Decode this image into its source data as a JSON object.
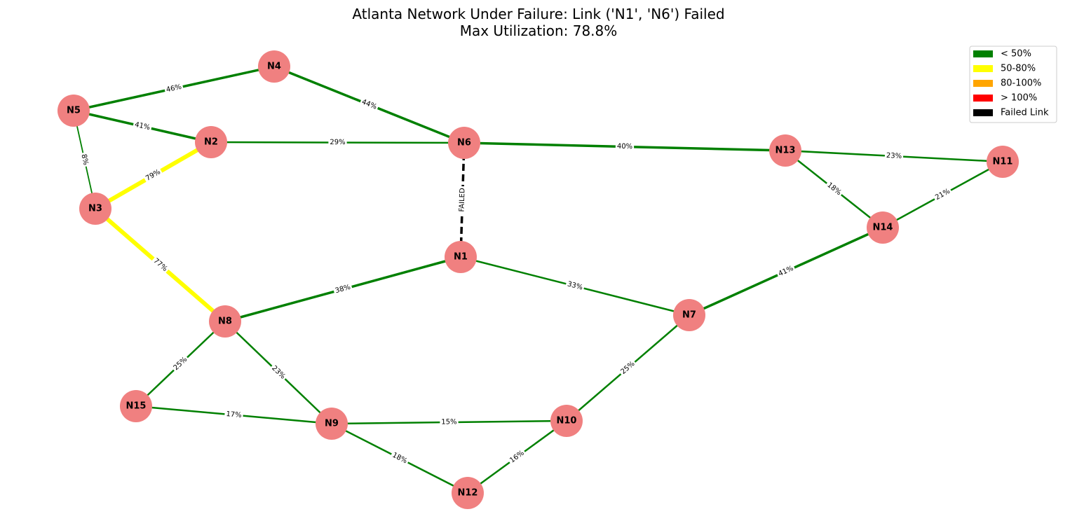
{
  "title": {
    "line1": "Atlanta Network Under Failure: Link ('N1', 'N6') Failed",
    "line2": "Max Utilization: 78.8%"
  },
  "colors": {
    "low": "#008000",
    "medium": "#ffff00",
    "high": "#ffa500",
    "over": "#ff0000",
    "failed": "#000000",
    "node": "#f08080"
  },
  "legend": [
    {
      "label": "< 50%",
      "color": "#008000"
    },
    {
      "label": "50-80%",
      "color": "#ffff00"
    },
    {
      "label": "80-100%",
      "color": "#ffa500"
    },
    {
      "label": "> 100%",
      "color": "#ff0000"
    },
    {
      "label": "Failed Link",
      "color": "#000000"
    }
  ],
  "nodes": [
    "N1",
    "N2",
    "N3",
    "N4",
    "N5",
    "N6",
    "N7",
    "N8",
    "N9",
    "N10",
    "N11",
    "N12",
    "N13",
    "N14",
    "N15"
  ],
  "edges": [
    {
      "source": "N5",
      "target": "N4",
      "label": "46%",
      "utilization": 46
    },
    {
      "source": "N4",
      "target": "N6",
      "label": "44%",
      "utilization": 44
    },
    {
      "source": "N5",
      "target": "N2",
      "label": "41%",
      "utilization": 41
    },
    {
      "source": "N2",
      "target": "N6",
      "label": "29%",
      "utilization": 29
    },
    {
      "source": "N6",
      "target": "N13",
      "label": "40%",
      "utilization": 40
    },
    {
      "source": "N13",
      "target": "N11",
      "label": "23%",
      "utilization": 23
    },
    {
      "source": "N5",
      "target": "N3",
      "label": "8%",
      "utilization": 8
    },
    {
      "source": "N3",
      "target": "N2",
      "label": "79%",
      "utilization": 79
    },
    {
      "source": "N6",
      "target": "N1",
      "label": "FAILED",
      "failed": true
    },
    {
      "source": "N13",
      "target": "N14",
      "label": "18%",
      "utilization": 18
    },
    {
      "source": "N14",
      "target": "N11",
      "label": "21%",
      "utilization": 21
    },
    {
      "source": "N3",
      "target": "N8",
      "label": "77%",
      "utilization": 77
    },
    {
      "source": "N8",
      "target": "N1",
      "label": "38%",
      "utilization": 38
    },
    {
      "source": "N1",
      "target": "N7",
      "label": "33%",
      "utilization": 33
    },
    {
      "source": "N7",
      "target": "N14",
      "label": "41%",
      "utilization": 41
    },
    {
      "source": "N8",
      "target": "N15",
      "label": "25%",
      "utilization": 25
    },
    {
      "source": "N8",
      "target": "N9",
      "label": "23%",
      "utilization": 23
    },
    {
      "source": "N7",
      "target": "N10",
      "label": "25%",
      "utilization": 25
    },
    {
      "source": "N15",
      "target": "N9",
      "label": "17%",
      "utilization": 17
    },
    {
      "source": "N9",
      "target": "N10",
      "label": "15%",
      "utilization": 15
    },
    {
      "source": "N9",
      "target": "N12",
      "label": "18%",
      "utilization": 18
    },
    {
      "source": "N12",
      "target": "N10",
      "label": "16%",
      "utilization": 16
    }
  ]
}
